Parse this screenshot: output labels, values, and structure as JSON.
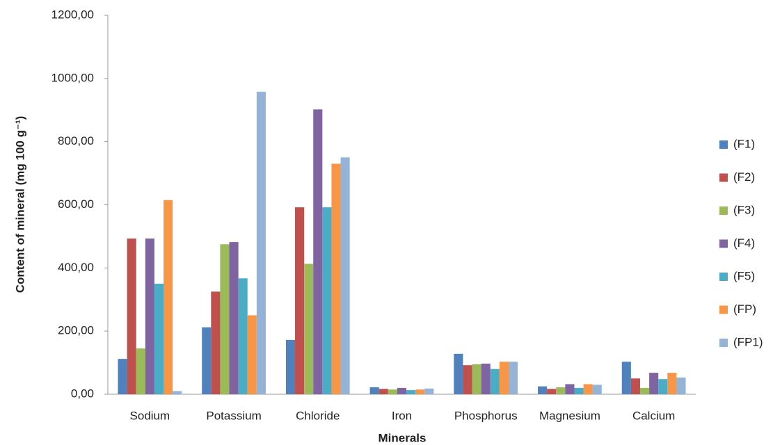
{
  "chart_data": {
    "type": "bar",
    "y_label": "Content of mineral (mg 100 g⁻¹)",
    "x_label": "Minerals",
    "categories": [
      "Sodium",
      "Potassium",
      "Chloride",
      "Iron",
      "Phosphorus",
      "Magnesium",
      "Calcium"
    ],
    "series": [
      {
        "name": "(F1)",
        "color": "#4f81bd",
        "values": [
          112,
          212,
          172,
          22,
          128,
          25,
          103
        ]
      },
      {
        "name": "(F2)",
        "color": "#c0504d",
        "values": [
          493,
          325,
          592,
          17,
          92,
          17,
          50
        ]
      },
      {
        "name": "(F3)",
        "color": "#9bbb59",
        "values": [
          145,
          475,
          413,
          15,
          95,
          22,
          20
        ]
      },
      {
        "name": "(F4)",
        "color": "#8064a2",
        "values": [
          493,
          482,
          902,
          20,
          97,
          32,
          68
        ]
      },
      {
        "name": "(F5)",
        "color": "#4bacc6",
        "values": [
          350,
          367,
          592,
          13,
          80,
          20,
          48
        ]
      },
      {
        "name": "(FP)",
        "color": "#f79646",
        "values": [
          615,
          250,
          730,
          15,
          103,
          32,
          68
        ]
      },
      {
        "name": "(FP1)",
        "color": "#95b3d7",
        "values": [
          10,
          958,
          750,
          18,
          103,
          30,
          53
        ]
      }
    ],
    "ylim": [
      0,
      1200
    ],
    "yticks": [
      {
        "value": 0,
        "label": "0,00"
      },
      {
        "value": 200,
        "label": "200,00"
      },
      {
        "value": 400,
        "label": "400,00"
      },
      {
        "value": 600,
        "label": "600,00"
      },
      {
        "value": 800,
        "label": "800,00"
      },
      {
        "value": 1000,
        "label": "1000,00"
      },
      {
        "value": 1200,
        "label": "1200,00"
      }
    ],
    "grid": false,
    "legend": "right"
  }
}
